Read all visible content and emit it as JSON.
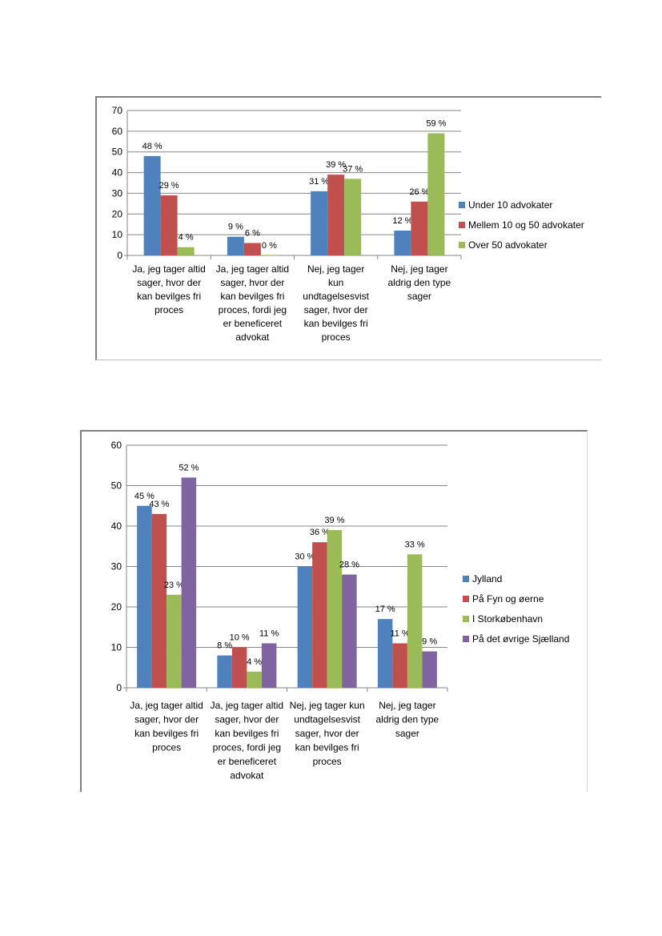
{
  "chart_data": [
    {
      "type": "bar",
      "categories": [
        "Ja, jeg tager altid sager, hvor der kan bevilges fri proces",
        "Ja, jeg tager altid sager, hvor der kan bevilges fri proces, fordi jeg er beneficeret advokat",
        "Nej, jeg tager kun undtagelsesvist sager, hvor der kan bevilges fri proces",
        "Nej, jeg tager aldrig den type sager"
      ],
      "category_lines": [
        [
          "Ja, jeg tager altid",
          "sager, hvor der",
          "kan bevilges fri",
          "proces"
        ],
        [
          "Ja, jeg tager altid",
          "sager, hvor der",
          "kan bevilges fri",
          "proces, fordi jeg",
          "er beneficeret",
          "advokat"
        ],
        [
          "Nej, jeg tager",
          "kun",
          "undtagelsesvist",
          "sager, hvor der",
          "kan bevilges fri",
          "proces"
        ],
        [
          "Nej, jeg tager",
          "aldrig den type",
          "sager"
        ]
      ],
      "series": [
        {
          "name": "Under 10 advokater",
          "color": "#4f81bd",
          "values": [
            48,
            9,
            31,
            12
          ],
          "labels": [
            "48 %",
            "9 %",
            "31 %",
            "12 %"
          ]
        },
        {
          "name": "Mellem 10 og 50 advokater",
          "color": "#c0504d",
          "values": [
            29,
            6,
            39,
            26
          ],
          "labels": [
            "29 %",
            "6 %",
            "39 %",
            "26 %"
          ]
        },
        {
          "name": "Over 50 advokater",
          "color": "#9bbb59",
          "values": [
            4,
            0,
            37,
            59
          ],
          "labels": [
            "4 %",
            "0 %",
            "37 %",
            "59 %"
          ]
        }
      ],
      "yticks": [
        "0",
        "10",
        "20",
        "30",
        "40",
        "50",
        "60",
        "70"
      ],
      "ylim": [
        0,
        70
      ],
      "grid": true,
      "legend": "right"
    },
    {
      "type": "bar",
      "categories": [
        "Ja, jeg tager altid sager, hvor der kan bevilges fri proces",
        "Ja, jeg tager altid sager, hvor der kan bevilges fri proces, fordi jeg er beneficeret advokat",
        "Nej, jeg tager kun undtagelsesvist sager, hvor der kan bevilges fri proces",
        "Nej, jeg tager aldrig den type sager"
      ],
      "category_lines": [
        [
          "Ja, jeg tager altid",
          "sager, hvor der",
          "kan bevilges fri",
          "proces"
        ],
        [
          "Ja, jeg tager altid",
          "sager, hvor der",
          "kan bevilges fri",
          "proces, fordi jeg",
          "er beneficeret",
          "advokat"
        ],
        [
          "Nej, jeg tager kun",
          "undtagelsesvist",
          "sager, hvor der",
          "kan bevilges fri",
          "proces"
        ],
        [
          "Nej, jeg tager",
          "aldrig den type",
          "sager"
        ]
      ],
      "series": [
        {
          "name": "Jylland",
          "color": "#4f81bd",
          "values": [
            45,
            8,
            30,
            17
          ],
          "labels": [
            "45 %",
            "8 %",
            "30 %",
            "17 %"
          ]
        },
        {
          "name": "På Fyn og øerne",
          "color": "#c0504d",
          "values": [
            43,
            10,
            36,
            11
          ],
          "labels": [
            "43 %",
            "10 %",
            "36 %",
            "11 %"
          ]
        },
        {
          "name": "I Storkøbenhavn",
          "color": "#9bbb59",
          "values": [
            23,
            4,
            39,
            33
          ],
          "labels": [
            "23 %",
            "4 %",
            "39 %",
            "33 %"
          ]
        },
        {
          "name": "På det øvrige Sjælland",
          "color": "#8064a2",
          "values": [
            52,
            11,
            28,
            9
          ],
          "labels": [
            "52 %",
            "11 %",
            "28 %",
            "9 %"
          ]
        }
      ],
      "yticks": [
        "0",
        "10",
        "20",
        "30",
        "40",
        "50",
        "60"
      ],
      "ylim": [
        0,
        60
      ],
      "grid": true,
      "legend": "right"
    }
  ]
}
